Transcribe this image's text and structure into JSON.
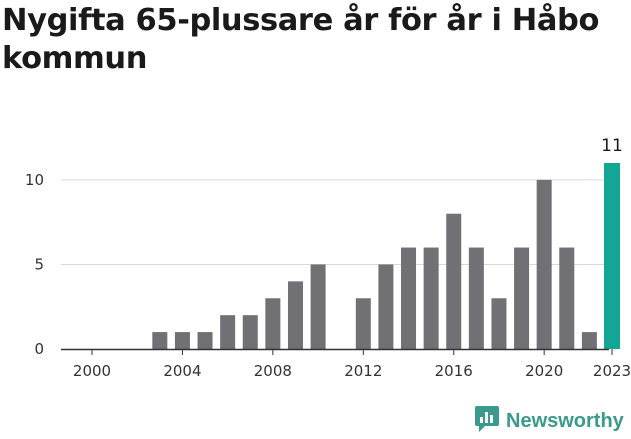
{
  "header": {
    "title": "Nygifta 65-plussare år för år i Håbo kommun"
  },
  "brand": {
    "name": "Newsworthy",
    "icon": "newsworthy-logo-icon",
    "color": "#3a9a8b"
  },
  "colors": {
    "bar": "#707075",
    "highlight": "#13a596",
    "grid": "#d9d9d9",
    "axis": "#333333"
  },
  "chart_data": {
    "type": "bar",
    "title": "Nygifta 65-plussare år för år i Håbo kommun",
    "xlabel": "",
    "ylabel": "",
    "x": [
      2000,
      2001,
      2002,
      2003,
      2004,
      2005,
      2006,
      2007,
      2008,
      2009,
      2010,
      2011,
      2012,
      2013,
      2014,
      2015,
      2016,
      2017,
      2018,
      2019,
      2020,
      2021,
      2022,
      2023
    ],
    "values": [
      0,
      0,
      0,
      1,
      1,
      1,
      2,
      2,
      3,
      4,
      5,
      0,
      3,
      5,
      6,
      6,
      8,
      6,
      3,
      6,
      10,
      6,
      1,
      11
    ],
    "ylim": [
      0,
      11
    ],
    "yticks": [
      0,
      5,
      10
    ],
    "xticks": [
      2000,
      2004,
      2008,
      2012,
      2016,
      2020,
      2023
    ],
    "highlight": {
      "x": 2023,
      "label": "11"
    },
    "grid": true,
    "legend": "none"
  }
}
